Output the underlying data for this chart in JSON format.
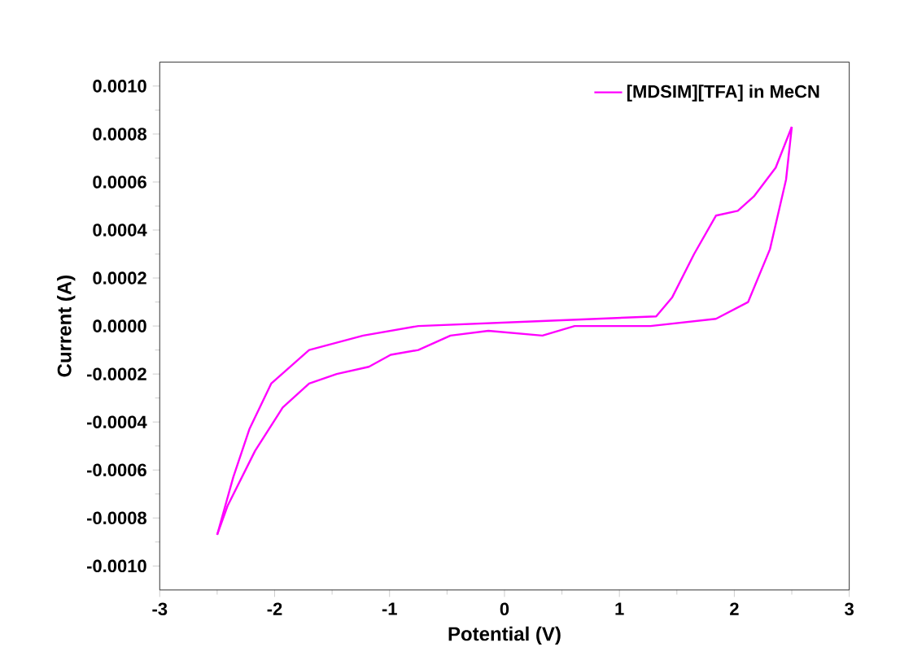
{
  "chart_data": {
    "type": "line",
    "xlabel": "Potential (V)",
    "ylabel": "Current (A)",
    "legend": "top right",
    "line_style": "solid",
    "marker": "none",
    "grid": false,
    "series": [
      {
        "name": "[MDSIM][TFA] in MeCN",
        "color": "#ff00ff",
        "x": [
          -2.5,
          -2.36,
          -2.22,
          -2.03,
          -1.7,
          -1.23,
          -0.75,
          0.28,
          0.8,
          1.32,
          1.46,
          1.65,
          1.84,
          2.03,
          2.17,
          2.36,
          2.5
        ],
        "values": [
          -0.00087,
          -0.00063,
          -0.00043,
          -0.00024,
          -0.0001,
          -4e-05,
          0.0,
          2e-05,
          3e-05,
          4e-05,
          0.00012,
          0.0003,
          0.00046,
          0.00048,
          0.00054,
          0.00066,
          0.00083
        ]
      },
      {
        "color": "#ff00ff",
        "x": [
          -2.5,
          -2.41,
          -2.17,
          -1.93,
          -1.7,
          -1.46,
          -1.18,
          -0.99,
          -0.75,
          -0.47,
          -0.14,
          0.33,
          0.61,
          1.27,
          1.84,
          2.12,
          2.31,
          2.45,
          2.5
        ],
        "values": [
          -0.00087,
          -0.00075,
          -0.00052,
          -0.00034,
          -0.00024,
          -0.0002,
          -0.00017,
          -0.00012,
          -0.0001,
          -4e-05,
          -2e-05,
          -4e-05,
          0.0,
          0.0,
          3e-05,
          0.0001,
          0.00032,
          0.00061,
          0.00083
        ]
      }
    ],
    "xlim": [
      -3,
      3
    ],
    "xticks": [
      -3,
      -2,
      -1,
      0,
      1,
      2,
      3
    ],
    "ylim": [
      -0.0011,
      0.0011
    ],
    "yticks": [
      {
        "value": 0.001,
        "label": "0.0010"
      },
      {
        "value": 0.0008,
        "label": "0.0008"
      },
      {
        "value": 0.0006,
        "label": "0.0006"
      },
      {
        "value": 0.0004,
        "label": "0.0004"
      },
      {
        "value": 0.0002,
        "label": "0.0002"
      },
      {
        "value": 0,
        "label": "0.0000"
      },
      {
        "value": -0.0002,
        "label": "-0.0002"
      },
      {
        "value": -0.0004,
        "label": "-0.0004"
      },
      {
        "value": -0.0006,
        "label": "-0.0006"
      },
      {
        "value": -0.0008,
        "label": "-0.0008"
      },
      {
        "value": -0.001,
        "label": "-0.0010"
      }
    ]
  }
}
